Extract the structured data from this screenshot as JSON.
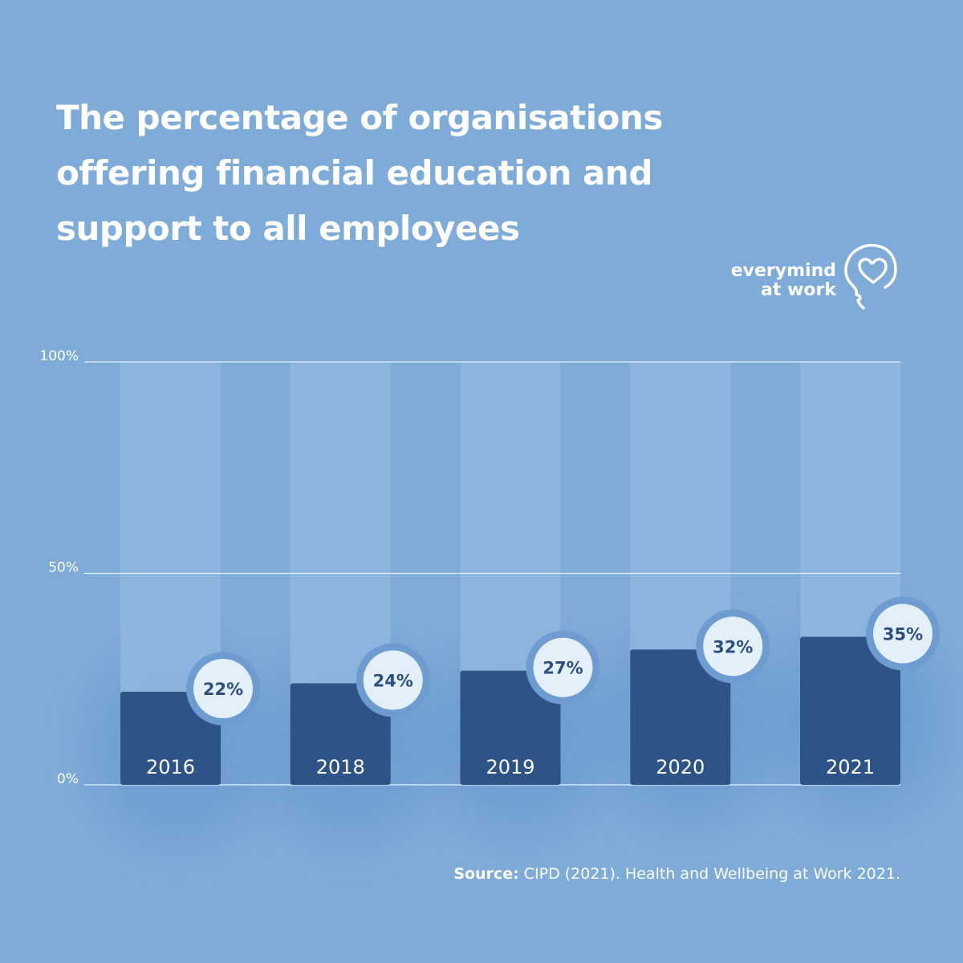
{
  "title": "The percentage of organisations offering financial education and support to all employees",
  "logo": {
    "line1": "everymind",
    "line2": "at work",
    "mark_icon": "head-heart-icon"
  },
  "source": {
    "label": "Source:",
    "text": "CIPD (2021). Health and Wellbeing at Work 2021."
  },
  "colors": {
    "background": "#7fabd8",
    "bar": "#2e5487",
    "track": "#8fb7df",
    "badge": "#e3f0fa",
    "badge_text": "#2e4f7d",
    "grid": "#e6f0fa",
    "text": "#ffffff"
  },
  "chart_data": {
    "type": "bar",
    "title": "The percentage of organisations offering financial education and support to all employees",
    "categories": [
      "2016",
      "2018",
      "2019",
      "2020",
      "2021"
    ],
    "values": [
      22,
      24,
      27,
      32,
      35
    ],
    "value_labels": [
      "22%",
      "24%",
      "27%",
      "32%",
      "35%"
    ],
    "yticks": [
      "0%",
      "50%",
      "100%"
    ],
    "ylim": [
      0,
      100
    ],
    "grid": true,
    "xlabel": "",
    "ylabel": ""
  }
}
